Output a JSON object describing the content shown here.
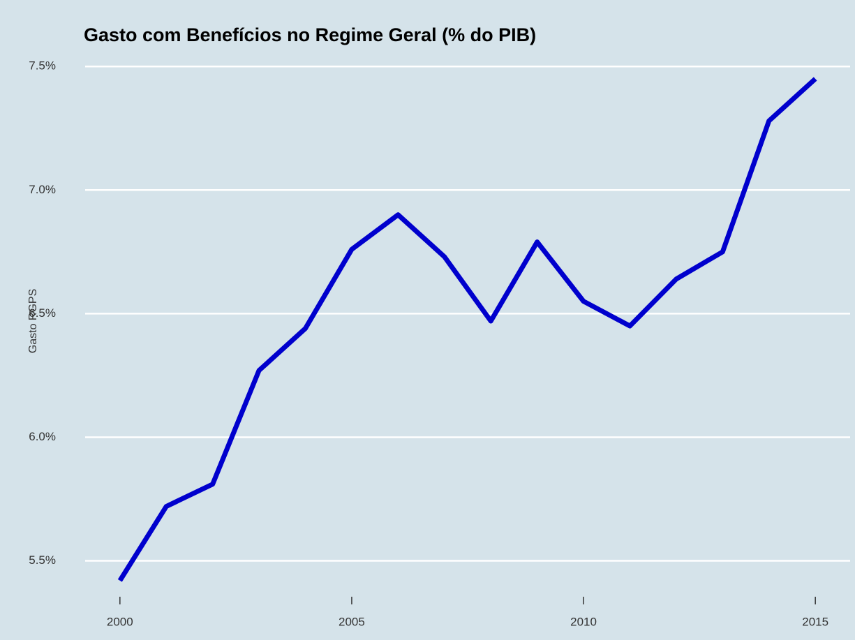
{
  "chart_data": {
    "type": "line",
    "title": "Gasto com Benefícios no Regime Geral (% do PIB)",
    "ylabel": "Gasto RGPS",
    "x": [
      2000,
      2001,
      2002,
      2003,
      2004,
      2005,
      2006,
      2007,
      2008,
      2009,
      2010,
      2011,
      2012,
      2013,
      2014,
      2015
    ],
    "series": [
      {
        "name": "Gasto RGPS",
        "color": "#0000cd",
        "values": [
          5.42,
          5.72,
          5.81,
          6.27,
          6.44,
          6.76,
          6.9,
          6.73,
          6.47,
          6.79,
          6.55,
          6.45,
          6.64,
          6.75,
          7.28,
          7.45
        ]
      }
    ],
    "xlim": [
      1999.25,
      2015.75
    ],
    "xticks": [
      2000,
      2005,
      2010,
      2015
    ],
    "ylim": [
      5.38,
      7.56
    ],
    "yticks": [
      {
        "value": 5.5,
        "label": "5.5%"
      },
      {
        "value": 6.0,
        "label": "6.0%"
      },
      {
        "value": 6.5,
        "label": "6.5%"
      },
      {
        "value": 7.0,
        "label": "7.0%"
      },
      {
        "value": 7.5,
        "label": "7.5%"
      }
    ],
    "grid": true
  }
}
